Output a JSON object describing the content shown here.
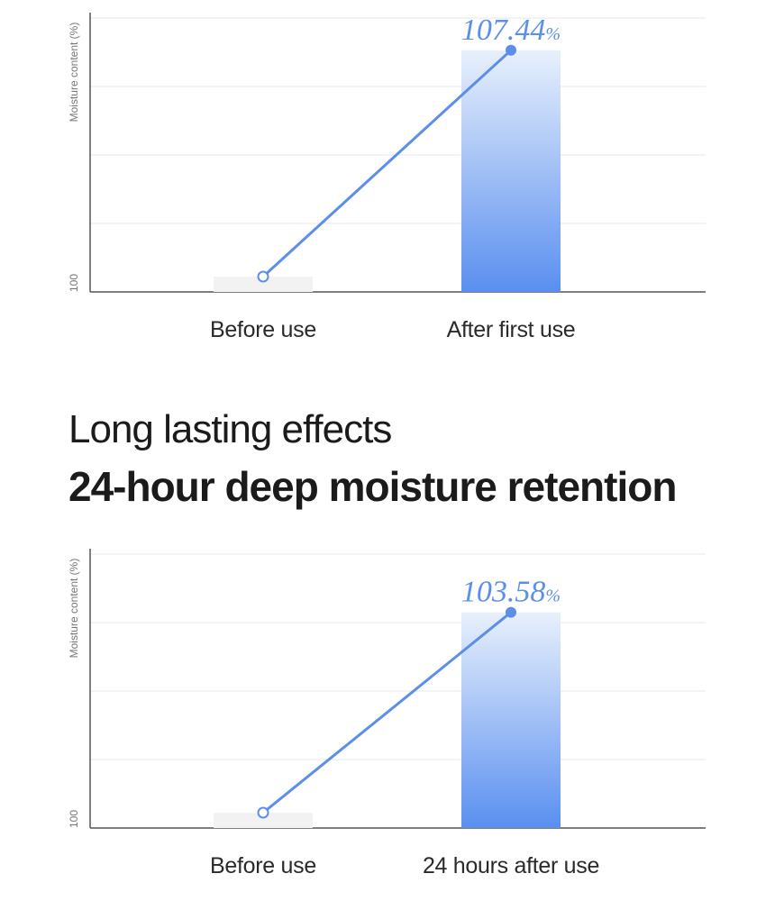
{
  "section": {
    "subtitle": "Long lasting effects",
    "title": "24-hour deep moisture retention"
  },
  "colors": {
    "accent": "#5b8fe8",
    "bar_top": "#e8f0fc",
    "bar_bottom": "#5a8ff0",
    "baseline_bar": "#f2f2f2",
    "grid": "#e3eaee",
    "axis": "#555555"
  },
  "chart_data": [
    {
      "type": "bar",
      "ylabel": "Moisture content (%)",
      "y_tick_label": "100",
      "categories": [
        "Before use",
        "After first use"
      ],
      "values": [
        100,
        107.44
      ],
      "value_label": "107.44",
      "value_unit": "%",
      "overlay": "line",
      "ylim": [
        99.5,
        108.5
      ],
      "grid": true
    },
    {
      "type": "bar",
      "ylabel": "Moisture content (%)",
      "y_tick_label": "100",
      "categories": [
        "Before use",
        "24 hours after use"
      ],
      "values": [
        100,
        103.58
      ],
      "value_label": "103.58",
      "value_unit": "%",
      "overlay": "line",
      "ylim": [
        99.8,
        104.6
      ],
      "grid": true
    }
  ]
}
